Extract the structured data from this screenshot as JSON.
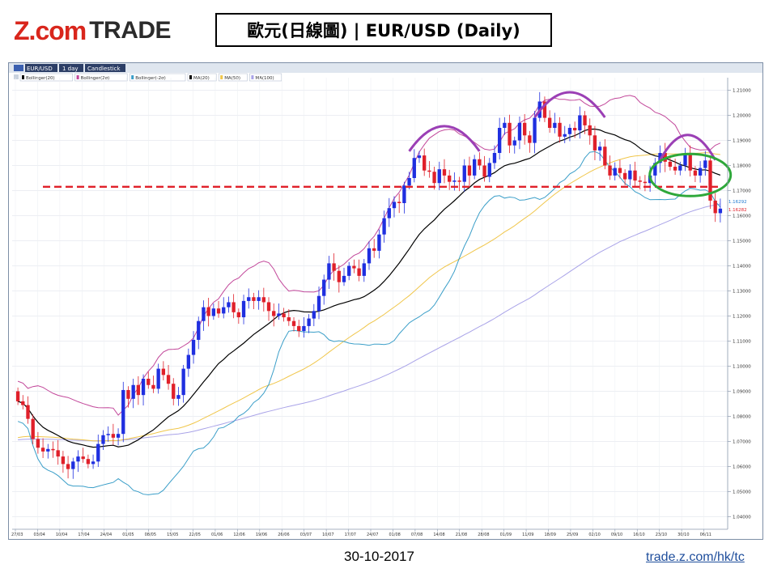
{
  "header": {
    "logo_z": "Z.com",
    "logo_trade": "TRADE",
    "title": "歐元(日線圖) | EUR/USD  (Daily)"
  },
  "toolbar": {
    "symbol": "EUR/USD",
    "period": "1 day",
    "chart_style": "Candlestick"
  },
  "legend": [
    {
      "label": "Bollinger(20)",
      "color": "#000000"
    },
    {
      "label": "Bollinger(2σ)",
      "color": "#c2479a"
    },
    {
      "label": "Bollinger(-2σ)",
      "color": "#3a9ec8"
    },
    {
      "label": "MA(20)",
      "color": "#000000"
    },
    {
      "label": "MA(50)",
      "color": "#f0c64a"
    },
    {
      "label": "MA(100)",
      "color": "#a9a3e8"
    }
  ],
  "colors": {
    "bull": "#1f2fe0",
    "bear": "#e0202a",
    "support_line": "#e0202a",
    "pattern_arcs": "#9b3fb5",
    "circle": "#2ea83a",
    "price_tag_blue": "#1f7ad0",
    "price_tag_red": "#e0202a"
  },
  "chart_data": {
    "type": "candlestick",
    "symbol": "EUR/USD",
    "ylim": [
      1.035,
      1.215
    ],
    "y_ticks": [
      "1.21000",
      "1.20000",
      "1.19000",
      "1.18000",
      "1.17000",
      "1.16000",
      "1.15000",
      "1.14000",
      "1.13000",
      "1.12000",
      "1.11000",
      "1.10000",
      "1.09000",
      "1.08000",
      "1.07000",
      "1.06000",
      "1.05000",
      "1.04000"
    ],
    "x_ticks": [
      "27/03",
      "03/04",
      "10/04",
      "17/04",
      "24/04",
      "01/05",
      "08/05",
      "15/05",
      "22/05",
      "01/06",
      "12/06",
      "19/06",
      "26/06",
      "03/07",
      "10/07",
      "17/07",
      "24/07",
      "01/08",
      "07/08",
      "14/08",
      "21/08",
      "28/08",
      "01/09",
      "11/09",
      "18/09",
      "25/09",
      "02/10",
      "09/10",
      "16/10",
      "23/10",
      "30/10",
      "06/11"
    ],
    "last_prices": [
      "1.16292",
      "1.16282"
    ],
    "support_level": 1.1715,
    "close": [
      1.086,
      1.0845,
      1.079,
      1.071,
      1.0675,
      1.066,
      1.067,
      1.0665,
      1.064,
      1.061,
      1.059,
      1.062,
      1.064,
      1.063,
      1.061,
      1.062,
      1.069,
      1.0725,
      1.073,
      1.0715,
      1.073,
      1.0905,
      1.087,
      1.0925,
      1.0885,
      1.095,
      1.0925,
      1.091,
      1.099,
      1.0965,
      1.093,
      1.087,
      1.0885,
      1.099,
      1.1045,
      1.1105,
      1.118,
      1.1235,
      1.12,
      1.123,
      1.121,
      1.1235,
      1.1255,
      1.1215,
      1.1195,
      1.126,
      1.1275,
      1.126,
      1.1275,
      1.1255,
      1.122,
      1.12,
      1.121,
      1.1195,
      1.118,
      1.116,
      1.114,
      1.116,
      1.119,
      1.122,
      1.128,
      1.1345,
      1.141,
      1.138,
      1.1335,
      1.136,
      1.14,
      1.139,
      1.136,
      1.141,
      1.147,
      1.146,
      1.1525,
      1.159,
      1.163,
      1.1655,
      1.165,
      1.172,
      1.175,
      1.183,
      1.184,
      1.178,
      1.1775,
      1.173,
      1.1785,
      1.176,
      1.1735,
      1.174,
      1.1735,
      1.18,
      1.176,
      1.1825,
      1.18,
      1.1755,
      1.181,
      1.185,
      1.195,
      1.197,
      1.188,
      1.19,
      1.197,
      1.192,
      1.189,
      1.199,
      1.2055,
      1.199,
      1.195,
      1.197,
      1.1915,
      1.1925,
      1.195,
      1.194,
      1.2,
      1.196,
      1.192,
      1.186,
      1.1875,
      1.18,
      1.176,
      1.179,
      1.177,
      1.1745,
      1.178,
      1.174,
      1.1735,
      1.173,
      1.176,
      1.181,
      1.185,
      1.1815,
      1.1795,
      1.178,
      1.18,
      1.1845,
      1.178,
      1.176,
      1.179,
      1.182,
      1.166,
      1.161,
      1.1628
    ]
  },
  "footer": {
    "date": "30-10-2017",
    "url": "trade.z.com/hk/tc"
  }
}
